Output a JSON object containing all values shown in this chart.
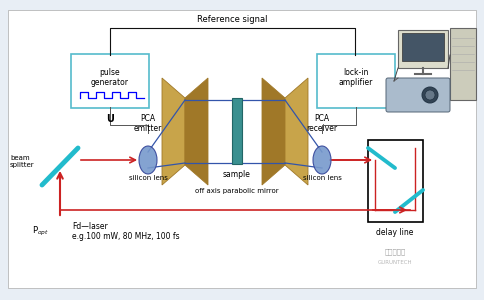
{
  "fig_bg": "#e8eef5",
  "ref_signal_text": "Reference signal",
  "sample_text": "sample",
  "pca_emitter_text": "PCA\nemitter",
  "pca_receiver_text": "PCA\nreceiver",
  "silicon_lens_left_text": "silicon lens",
  "silicon_lens_right_text": "silicon lens",
  "off_axis_text": "off axis parabolic mirror",
  "beam_splitter_text": "beam\nsplitter",
  "delay_line_text": "delay line",
  "lock_in_text": "lock-in\namplifier",
  "pulse_gen_text": "pulse\ngenerator",
  "u_text": "U",
  "laser_text": "Fd—laser\ne.g.100 mW, 80 MHz, 100 fs",
  "p_opt_text": "P",
  "mirror_color": "#c8a44a",
  "mirror_color_dark": "#a07828",
  "sample_color": "#3a9090",
  "lens_color": "#7799cc",
  "box_border_color": "#55bbcc",
  "red_color": "#cc2222",
  "blue_color": "#3355aa",
  "cyan_color": "#22bbcc",
  "white": "#ffffff",
  "black": "#111111",
  "watermark_text": "固态光子网",
  "watermark_text2": "GURUNTECH"
}
